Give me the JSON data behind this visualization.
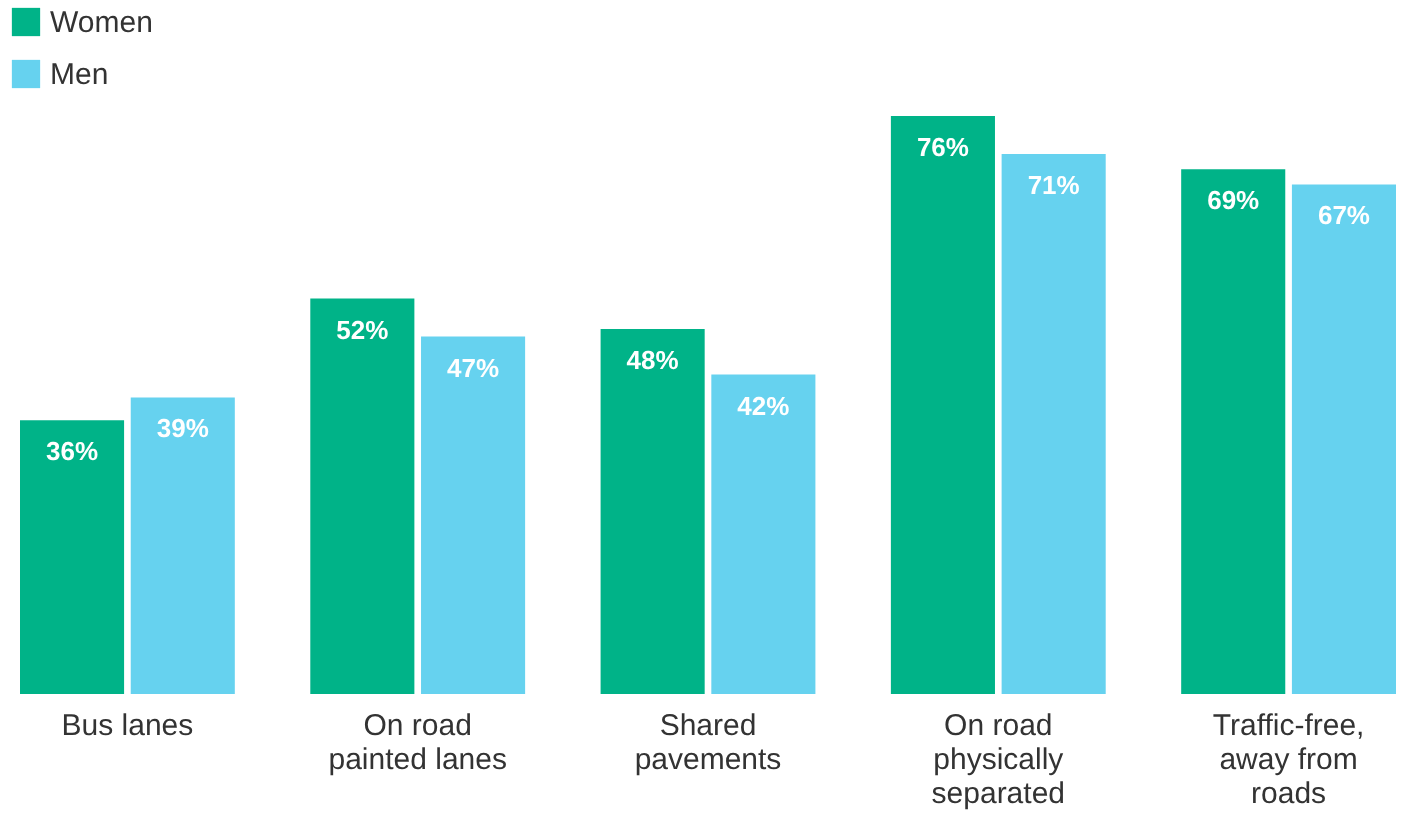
{
  "chart_data": {
    "type": "bar",
    "categories": [
      "Bus lanes",
      "On road painted lanes",
      "Shared pavements",
      "On road physically separated",
      "Traffic-free, away from roads"
    ],
    "series": [
      {
        "name": "Women",
        "color": "#00b388",
        "values": [
          36,
          52,
          48,
          76,
          69
        ],
        "value_labels": [
          "36%",
          "52%",
          "48%",
          "76%",
          "69%"
        ]
      },
      {
        "name": "Men",
        "color": "#66d2ef",
        "values": [
          39,
          47,
          42,
          71,
          67
        ],
        "value_labels": [
          "39%",
          "47%",
          "42%",
          "71%",
          "67%"
        ]
      }
    ],
    "legend": "top left",
    "grid": false
  }
}
